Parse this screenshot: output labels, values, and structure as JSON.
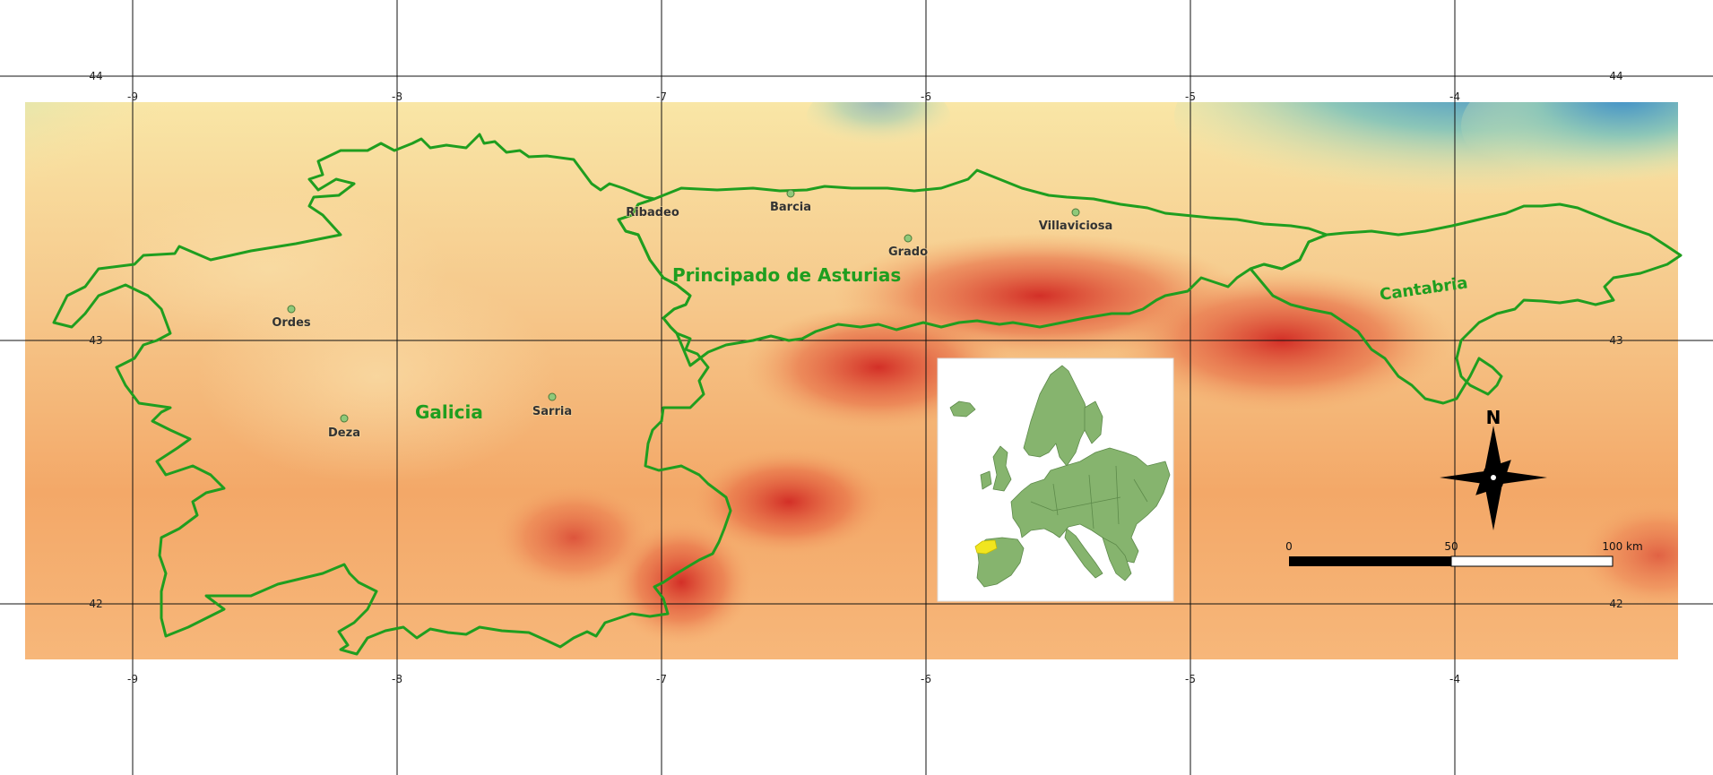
{
  "colors": {
    "boundary": "#1f9e1f",
    "low_elevation": "#f9e6a6",
    "mid_elevation": "#f3a868",
    "high_elevation": "#d9342b",
    "sea_shallow": "#b7dfb0",
    "sea_deep": "#3f8fc9",
    "europe_land": "#86b46e",
    "highlight_region": "#f1e51f"
  },
  "grid": {
    "longitude_labels": [
      "-9",
      "-8",
      "-7",
      "-6",
      "-5",
      "-4"
    ],
    "latitude_labels": [
      "44",
      "43",
      "42"
    ]
  },
  "places": [
    {
      "name": "Ribadeo"
    },
    {
      "name": "Barcia"
    },
    {
      "name": "Villaviciosa"
    },
    {
      "name": "Grado"
    },
    {
      "name": "Ordes"
    },
    {
      "name": "Sarria"
    },
    {
      "name": "Deza"
    }
  ],
  "regions": [
    {
      "name": "Principado de Asturias"
    },
    {
      "name": "Galicia"
    },
    {
      "name": "Cantabria"
    }
  ],
  "north_arrow": {
    "label": "N",
    "icon": "compass-rose-icon"
  },
  "scale_bar": {
    "labels": [
      "0",
      "50",
      "100 km"
    ]
  },
  "inset": {
    "icon": "europe-locator-map"
  }
}
